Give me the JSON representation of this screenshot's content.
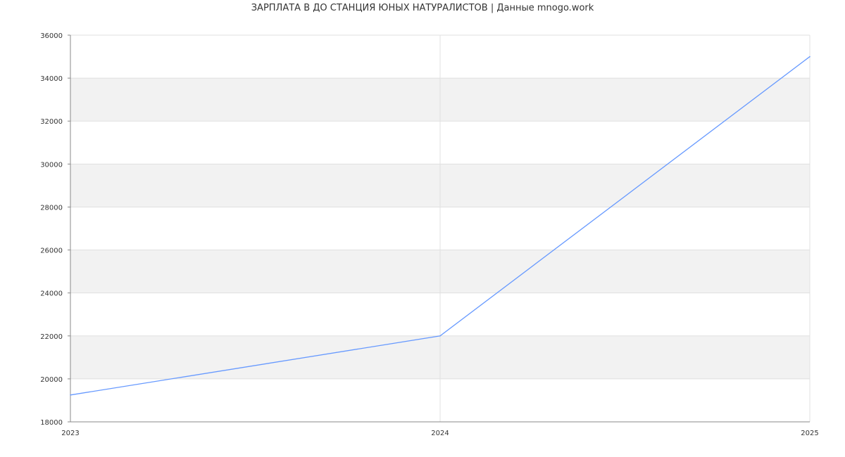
{
  "chart_data": {
    "type": "line",
    "title": "ЗАРПЛАТА В ДО СТАНЦИЯ ЮНЫХ НАТУРАЛИСТОВ | Данные mnogo.work",
    "x": [
      "2023",
      "2024",
      "2025"
    ],
    "series": [
      {
        "values": [
          19250,
          22000,
          35000
        ],
        "color": "#6699ff"
      }
    ],
    "ylim": [
      18000,
      36000
    ],
    "yticks": [
      "18000",
      "20000",
      "22000",
      "24000",
      "26000",
      "28000",
      "30000",
      "32000",
      "34000",
      "36000"
    ],
    "xticks": [
      "2023",
      "2024",
      "2025"
    ],
    "grid": true,
    "band_color": "#f2f2f2"
  }
}
